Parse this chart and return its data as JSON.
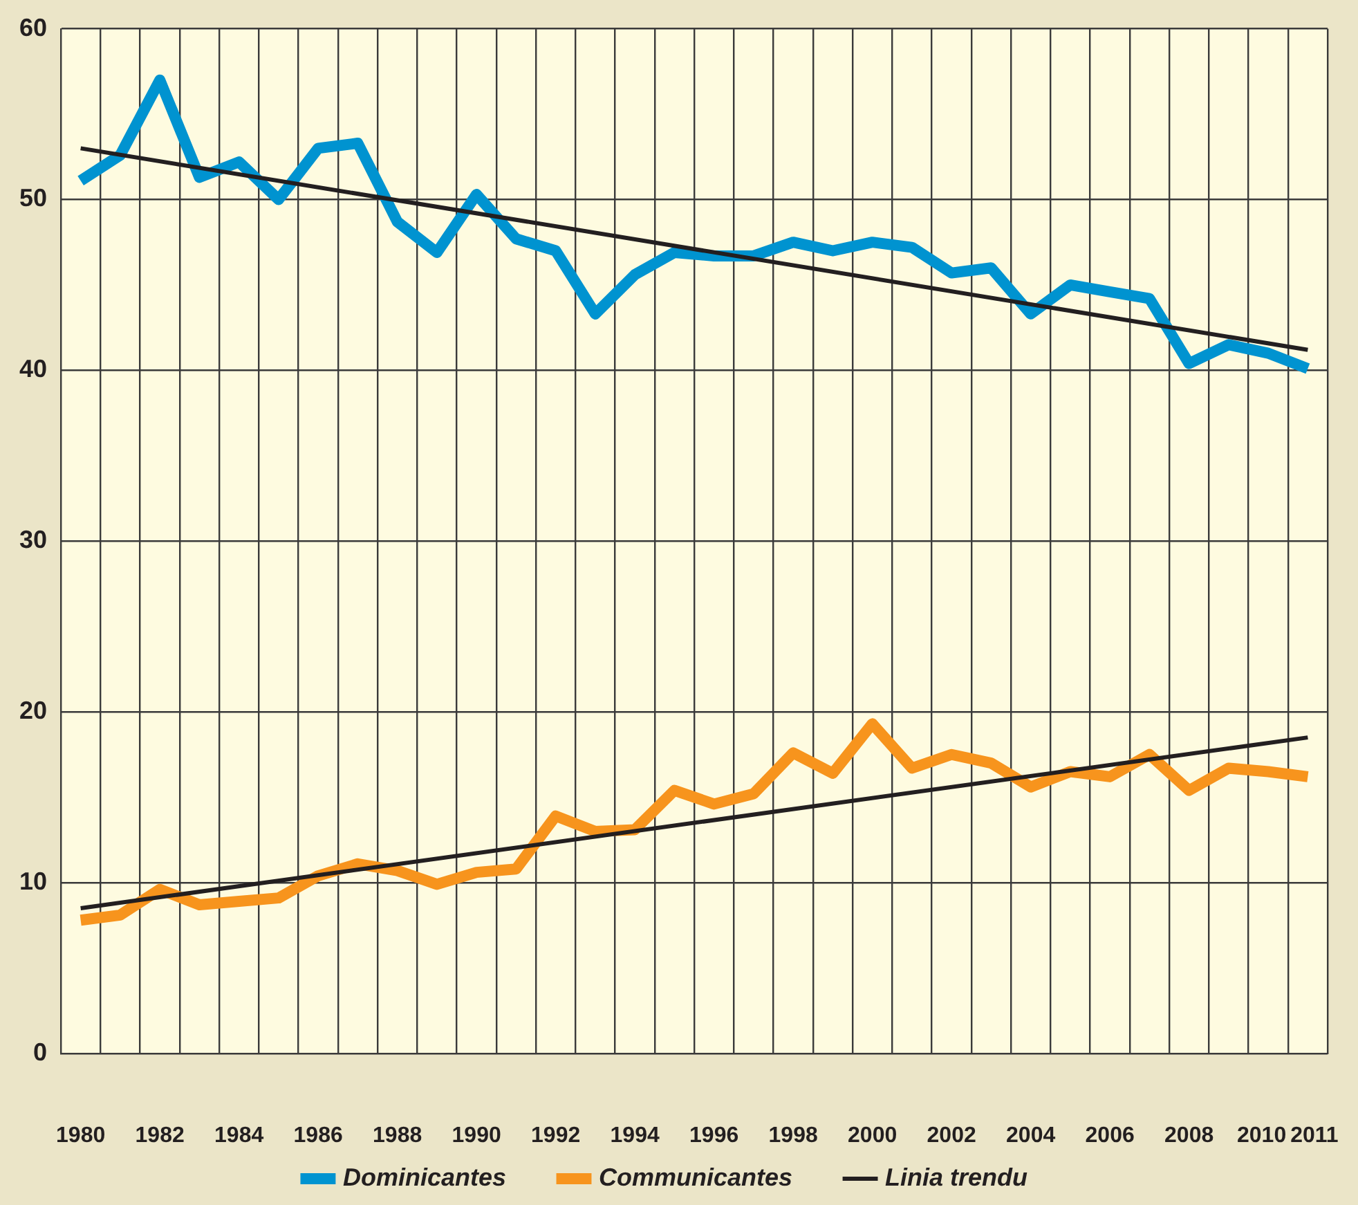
{
  "chart_data": {
    "type": "line",
    "categories": [
      "1980",
      null,
      "1982",
      null,
      "1984",
      null,
      "1986",
      null,
      "1988",
      null,
      "1990",
      null,
      "1992",
      null,
      "1994",
      null,
      "1996",
      null,
      "1998",
      null,
      "2000",
      null,
      "2002",
      null,
      "2004",
      null,
      "2006",
      null,
      "2008",
      null,
      "2010",
      "2011"
    ],
    "ylim": [
      0,
      60
    ],
    "yticks": [
      0,
      10,
      20,
      30,
      40,
      50,
      60
    ],
    "grid": true,
    "legend": "bottom",
    "marker": "none",
    "line_style": "solid",
    "series": [
      {
        "name": "Dominicantes",
        "color": "#0093d0",
        "values": [
          51.1,
          52.6,
          57.0,
          51.3,
          52.2,
          50.0,
          53.0,
          53.3,
          48.7,
          46.9,
          50.3,
          47.7,
          47.0,
          43.3,
          45.6,
          46.9,
          46.7,
          46.7,
          47.5,
          47.0,
          47.5,
          47.2,
          45.7,
          46.0,
          43.3,
          45.0,
          44.6,
          44.2,
          40.4,
          41.5,
          41.0,
          40.1
        ]
      },
      {
        "name": "Communicantes",
        "color": "#f7941d",
        "values": [
          7.8,
          8.1,
          9.6,
          8.7,
          8.9,
          9.1,
          10.4,
          11.1,
          10.7,
          9.9,
          10.6,
          10.8,
          13.9,
          13.0,
          13.1,
          15.4,
          14.6,
          15.2,
          17.6,
          16.4,
          19.3,
          16.7,
          17.5,
          17.0,
          15.6,
          16.5,
          16.2,
          17.5,
          15.4,
          16.7,
          16.5,
          16.2
        ]
      },
      {
        "name": "Linia trendu",
        "type": "line",
        "color": "#231f20",
        "values": [
          53.0,
          null,
          null,
          null,
          null,
          null,
          null,
          null,
          null,
          null,
          null,
          null,
          null,
          null,
          null,
          null,
          null,
          null,
          null,
          null,
          null,
          null,
          null,
          null,
          null,
          null,
          null,
          null,
          null,
          null,
          null,
          41.2
        ]
      },
      {
        "type": "line",
        "color": "#231f20",
        "values": [
          8.5,
          null,
          null,
          null,
          null,
          null,
          null,
          null,
          null,
          null,
          null,
          null,
          null,
          null,
          null,
          null,
          null,
          null,
          null,
          null,
          null,
          null,
          null,
          null,
          null,
          null,
          null,
          null,
          null,
          null,
          null,
          18.5
        ]
      }
    ]
  }
}
